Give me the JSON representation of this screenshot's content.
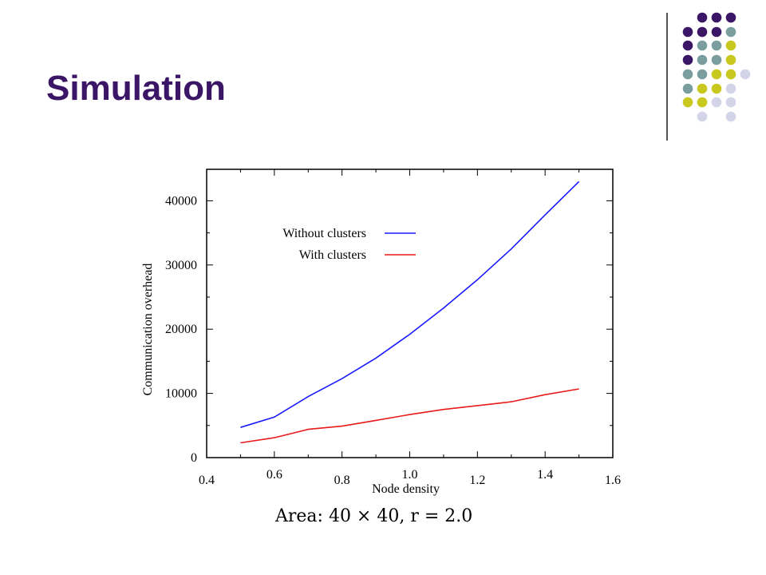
{
  "slide": {
    "title": "Simulation",
    "caption": "Area: 40 × 40, r = 2.0"
  },
  "decoration": {
    "dot_colors": [
      "#3b1566",
      "#7a9e9f",
      "#c8c81e",
      "#d4d4e8"
    ],
    "divider_color": "#555555"
  },
  "chart_data": {
    "type": "line",
    "xlabel": "Node density",
    "ylabel": "Communication overhead",
    "xlim": [
      0.4,
      1.6
    ],
    "ylim": [
      0,
      40000
    ],
    "x_ticks": [
      "0.4",
      "0.6",
      "0.8",
      "1.0",
      "1.2",
      "1.4",
      "1.6"
    ],
    "y_ticks": [
      "0",
      "10000",
      "20000",
      "30000",
      "40000"
    ],
    "legend_position": "top-left inside",
    "grid": false,
    "series": [
      {
        "name": "Without clusters",
        "color": "#1a1aff",
        "points": [
          [
            0.5,
            4700
          ],
          [
            0.6,
            6300
          ],
          [
            0.7,
            9500
          ],
          [
            0.8,
            12300
          ],
          [
            0.9,
            15500
          ],
          [
            1.0,
            19200
          ],
          [
            1.1,
            23300
          ],
          [
            1.2,
            27700
          ],
          [
            1.3,
            32500
          ],
          [
            1.4,
            37800
          ],
          [
            1.5,
            43000
          ]
        ]
      },
      {
        "name": "With clusters",
        "color": "#e81a1a",
        "points": [
          [
            0.5,
            2300
          ],
          [
            0.6,
            3100
          ],
          [
            0.7,
            4400
          ],
          [
            0.8,
            4900
          ],
          [
            0.9,
            5800
          ],
          [
            1.0,
            6700
          ],
          [
            1.1,
            7500
          ],
          [
            1.2,
            8100
          ],
          [
            1.3,
            8700
          ],
          [
            1.4,
            9800
          ],
          [
            1.5,
            10700
          ]
        ]
      }
    ]
  }
}
